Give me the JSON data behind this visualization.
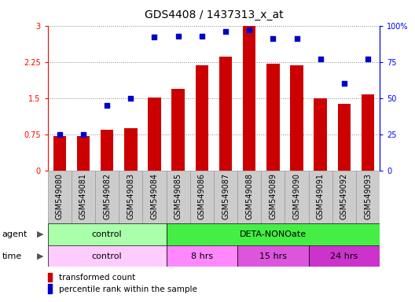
{
  "title": "GDS4408 / 1437313_x_at",
  "samples": [
    "GSM549080",
    "GSM549081",
    "GSM549082",
    "GSM549083",
    "GSM549084",
    "GSM549085",
    "GSM549086",
    "GSM549087",
    "GSM549088",
    "GSM549089",
    "GSM549090",
    "GSM549091",
    "GSM549092",
    "GSM549093"
  ],
  "bar_values": [
    0.72,
    0.72,
    0.85,
    0.88,
    1.52,
    1.7,
    2.18,
    2.36,
    3.0,
    2.22,
    2.18,
    1.5,
    1.38,
    1.58
  ],
  "dot_values": [
    25,
    25,
    45,
    50,
    92,
    93,
    93,
    96,
    97,
    91,
    91,
    77,
    60,
    77
  ],
  "bar_color": "#CC0000",
  "dot_color": "#0000CC",
  "ylim_left": [
    0,
    3
  ],
  "ylim_right": [
    0,
    100
  ],
  "yticks_left": [
    0,
    0.75,
    1.5,
    2.25,
    3
  ],
  "ytick_labels_left": [
    "0",
    "0.75",
    "1.5",
    "2.25",
    "3"
  ],
  "yticks_right": [
    0,
    25,
    50,
    75,
    100
  ],
  "ytick_labels_right": [
    "0",
    "25",
    "50",
    "75",
    "100%"
  ],
  "agent_groups": [
    {
      "label": "control",
      "start": 0,
      "end": 5,
      "color": "#AAFFAA"
    },
    {
      "label": "DETA-NONOate",
      "start": 5,
      "end": 14,
      "color": "#44EE44"
    }
  ],
  "time_groups": [
    {
      "label": "control",
      "start": 0,
      "end": 5,
      "color": "#FFCCFF"
    },
    {
      "label": "8 hrs",
      "start": 5,
      "end": 8,
      "color": "#FF88FF"
    },
    {
      "label": "15 hrs",
      "start": 8,
      "end": 11,
      "color": "#DD55DD"
    },
    {
      "label": "24 hrs",
      "start": 11,
      "end": 14,
      "color": "#CC33CC"
    }
  ],
  "legend_bar_label": "transformed count",
  "legend_dot_label": "percentile rank within the sample",
  "agent_label": "agent",
  "time_label": "time",
  "title_fontsize": 10,
  "tick_fontsize": 7,
  "label_fontsize": 8,
  "annotation_fontsize": 8,
  "grid_linestyle": "dotted",
  "grid_color": "#888888",
  "xtick_bg_color": "#CCCCCC",
  "xtick_border_color": "#999999",
  "fig_bg": "#FFFFFF"
}
